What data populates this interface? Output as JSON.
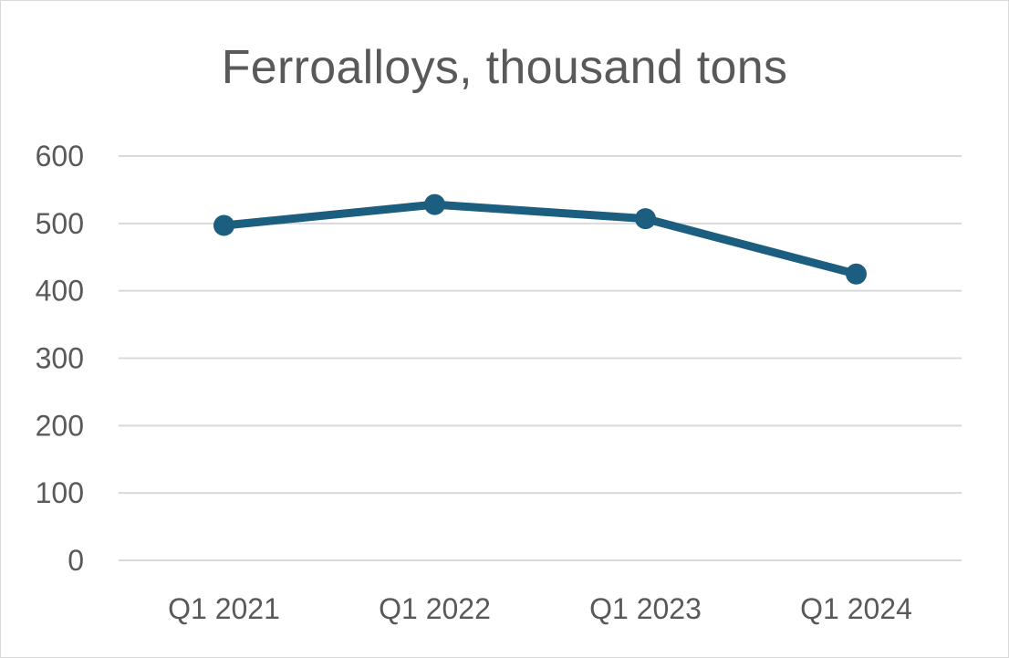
{
  "chart_data": {
    "type": "line",
    "title": "Ferroalloys, thousand tons",
    "categories": [
      "Q1 2021",
      "Q1 2022",
      "Q1 2023",
      "Q1 2024"
    ],
    "series": [
      {
        "values": [
          497,
          528,
          507,
          425
        ],
        "color": "#1b5e80"
      }
    ],
    "ylim": [
      0,
      600
    ],
    "yticks": [
      0,
      100,
      200,
      300,
      400,
      500,
      600
    ],
    "grid": true,
    "legend": "none",
    "xlabel": "",
    "ylabel": ""
  }
}
